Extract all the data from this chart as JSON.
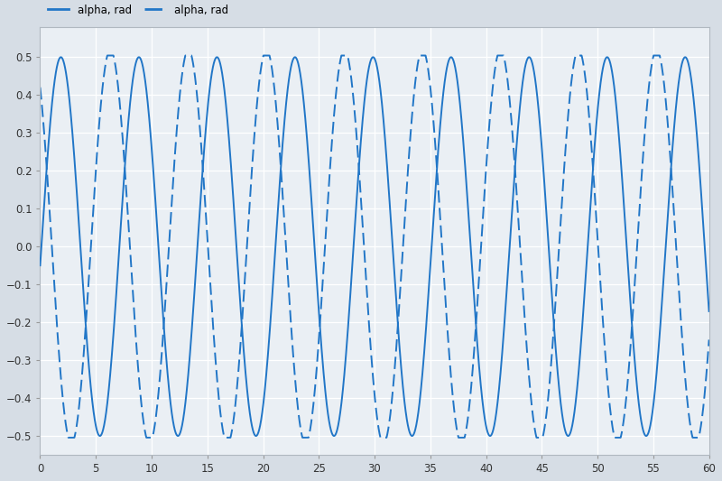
{
  "title": "",
  "legend_labels": [
    "alpha, rad",
    "alpha, rad"
  ],
  "solid_color": "#2176c7",
  "dashed_color": "#2176c7",
  "xlim": [
    0,
    60
  ],
  "ylim": [
    -0.55,
    0.58
  ],
  "xticks": [
    0,
    5,
    10,
    15,
    20,
    25,
    30,
    35,
    40,
    45,
    50,
    55,
    60
  ],
  "yticks": [
    -0.5,
    -0.4,
    -0.3,
    -0.2,
    -0.1,
    0,
    0.1,
    0.2,
    0.3,
    0.4,
    0.5
  ],
  "fig_bg": "#d6dde5",
  "ax_bg": "#eaeff4",
  "grid_color": "#ffffff",
  "solid_period": 7.0,
  "solid_amplitude": 0.5,
  "dashed_amplitude": 0.52,
  "dashed_period": 7.0,
  "solid_phase": -0.1,
  "dashed_phase": 2.2
}
